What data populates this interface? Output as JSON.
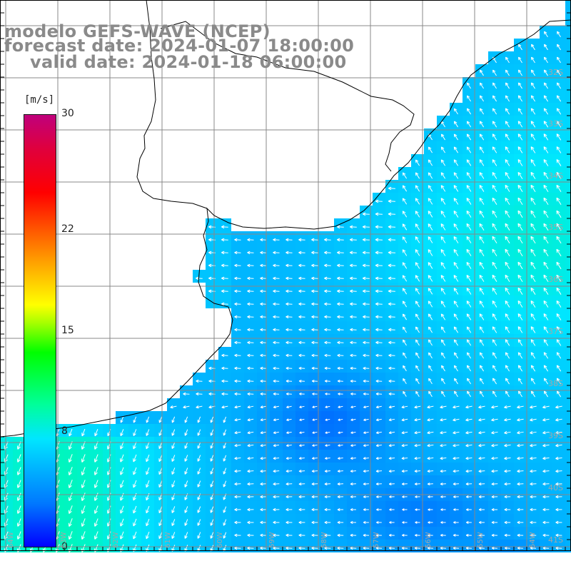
{
  "title": {
    "line1": "modelo GEFS-WAVE (NCEP)",
    "line2": "forecast date: 2024-01-07 18:00:00",
    "line3": "valid date: 2024-01-18 06:00:00"
  },
  "colorbar": {
    "unit": "[m/s]",
    "ticks": [
      {
        "label": "30",
        "value": 30
      },
      {
        "label": "22",
        "value": 22
      },
      {
        "label": "15",
        "value": 15
      },
      {
        "label": "8",
        "value": 8
      },
      {
        "label": "0",
        "value": 0
      }
    ],
    "range": [
      0,
      30
    ],
    "colors": [
      "#0000ff",
      "#0078ff",
      "#00e6ff",
      "#00ff99",
      "#00ff00",
      "#aaff00",
      "#ffff00",
      "#ffa000",
      "#ff0000",
      "#e0003c",
      "#c0007c"
    ]
  },
  "lat_labels": [
    "32S",
    "33S",
    "34S",
    "35S",
    "36S",
    "37S",
    "38S",
    "39S",
    "40S",
    "41S"
  ],
  "lon_labels": [
    "64W",
    "63W",
    "62W",
    "61W",
    "60W",
    "59W",
    "58W",
    "57W",
    "56W",
    "55W",
    "54W"
  ],
  "colors": {
    "land": "#ffffff",
    "grid": "#888888",
    "coast": "#000000",
    "title": "#8a8a8a",
    "arrows": "#ffffff"
  }
}
